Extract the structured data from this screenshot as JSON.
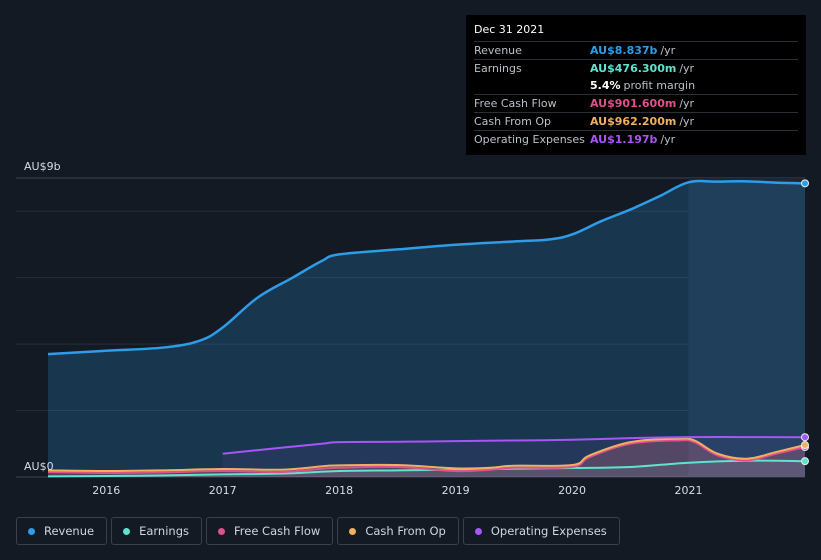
{
  "tooltip": {
    "date": "Dec 31 2021",
    "rows": [
      {
        "label": "Revenue",
        "value": "AU$8.837b",
        "unit": "/yr",
        "color": "#2f9ce8"
      },
      {
        "label": "Earnings",
        "value": "AU$476.300m",
        "unit": "/yr",
        "color": "#5ee3cf"
      },
      {
        "label": "",
        "value": "5.4%",
        "unit": "profit margin",
        "color": "#ffffff"
      },
      {
        "label": "Free Cash Flow",
        "value": "AU$901.600m",
        "unit": "/yr",
        "color": "#e0508a"
      },
      {
        "label": "Cash From Op",
        "value": "AU$962.200m",
        "unit": "/yr",
        "color": "#f0b060"
      },
      {
        "label": "Operating Expenses",
        "value": "AU$1.197b",
        "unit": "/yr",
        "color": "#a855f7"
      }
    ]
  },
  "legend": [
    {
      "label": "Revenue",
      "color": "#2f9ce8"
    },
    {
      "label": "Earnings",
      "color": "#5ee3cf"
    },
    {
      "label": "Free Cash Flow",
      "color": "#e0508a"
    },
    {
      "label": "Cash From Op",
      "color": "#f0b060"
    },
    {
      "label": "Operating Expenses",
      "color": "#a855f7"
    }
  ],
  "chart_data": {
    "type": "area",
    "y_top_label": "AU$9b",
    "y_bottom_label": "AU$0",
    "ylim": [
      0,
      9
    ],
    "xlim": [
      2015.5,
      2022.0
    ],
    "x_ticks": [
      "2016",
      "2017",
      "2018",
      "2019",
      "2020",
      "2021"
    ],
    "x_tick_values": [
      2016,
      2017,
      2018,
      2019,
      2020,
      2021
    ],
    "highlight_from": 2021.0,
    "series": [
      {
        "name": "Revenue",
        "color": "#2f9ce8",
        "x": [
          2015.5,
          2016.0,
          2016.5,
          2016.8,
          2017.0,
          2017.3,
          2017.6,
          2017.85,
          2018.0,
          2018.5,
          2019.0,
          2019.5,
          2019.8,
          2020.0,
          2020.25,
          2020.5,
          2020.75,
          2021.0,
          2021.25,
          2021.5,
          2021.75,
          2022.0
        ],
        "y": [
          3.7,
          3.8,
          3.9,
          4.1,
          4.5,
          5.4,
          6.0,
          6.5,
          6.7,
          6.85,
          6.99,
          7.09,
          7.15,
          7.3,
          7.7,
          8.05,
          8.45,
          8.87,
          8.89,
          8.9,
          8.86,
          8.84
        ]
      },
      {
        "name": "Earnings",
        "color": "#5ee3cf",
        "x": [
          2015.5,
          2016.0,
          2016.5,
          2017.0,
          2017.5,
          2018.0,
          2018.5,
          2019.0,
          2019.5,
          2020.0,
          2020.5,
          2021.0,
          2021.5,
          2022.0
        ],
        "y": [
          0.02,
          0.03,
          0.05,
          0.08,
          0.1,
          0.18,
          0.2,
          0.22,
          0.25,
          0.27,
          0.3,
          0.43,
          0.49,
          0.476
        ]
      },
      {
        "name": "Free Cash Flow",
        "color": "#e0508a",
        "x": [
          2015.5,
          2016.0,
          2016.5,
          2017.0,
          2017.5,
          2017.85,
          2018.0,
          2018.5,
          2019.0,
          2019.3,
          2019.5,
          2020.0,
          2020.15,
          2020.5,
          2020.9,
          2021.05,
          2021.25,
          2021.5,
          2021.75,
          2022.0
        ],
        "y": [
          0.15,
          0.12,
          0.14,
          0.18,
          0.15,
          0.25,
          0.28,
          0.3,
          0.18,
          0.22,
          0.28,
          0.3,
          0.6,
          1.0,
          1.1,
          1.05,
          0.65,
          0.5,
          0.7,
          0.9016
        ]
      },
      {
        "name": "Cash From Op",
        "color": "#f0b060",
        "x": [
          2015.5,
          2016.0,
          2016.5,
          2017.0,
          2017.5,
          2017.85,
          2018.0,
          2018.5,
          2019.0,
          2019.3,
          2019.5,
          2020.0,
          2020.15,
          2020.5,
          2020.9,
          2021.05,
          2021.25,
          2021.5,
          2021.75,
          2022.0
        ],
        "y": [
          0.2,
          0.18,
          0.2,
          0.24,
          0.22,
          0.32,
          0.35,
          0.36,
          0.26,
          0.28,
          0.34,
          0.36,
          0.65,
          1.05,
          1.15,
          1.1,
          0.7,
          0.55,
          0.75,
          0.9622
        ]
      },
      {
        "name": "Operating Expenses",
        "color": "#a855f7",
        "x": [
          2017.0,
          2017.5,
          2017.85,
          2018.0,
          2018.5,
          2019.0,
          2019.5,
          2020.0,
          2020.5,
          2021.0,
          2021.5,
          2022.0
        ],
        "y": [
          0.7,
          0.88,
          1.0,
          1.05,
          1.06,
          1.08,
          1.1,
          1.12,
          1.17,
          1.2,
          1.2,
          1.197
        ]
      }
    ]
  }
}
